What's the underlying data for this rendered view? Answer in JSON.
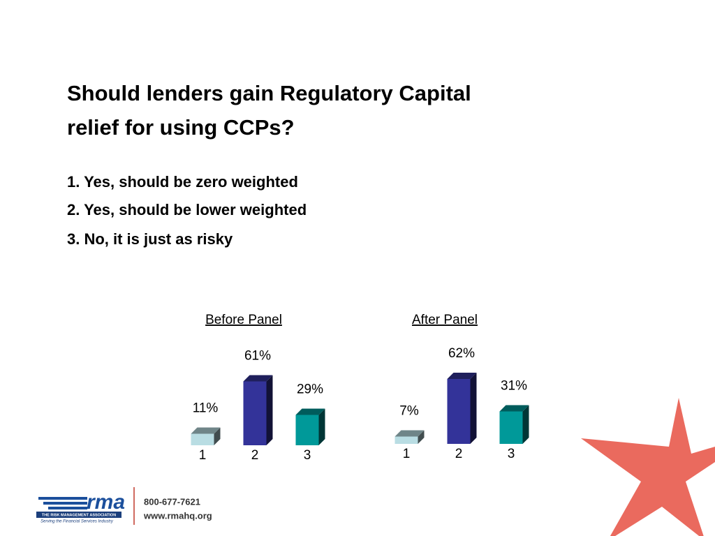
{
  "slide": {
    "title_lines": [
      "Should lenders gain Regulatory Capital",
      "relief for using CCPs?"
    ],
    "options": [
      "1. Yes, should be zero weighted",
      "2. Yes, should be lower weighted",
      "3. No, it is just as risky"
    ]
  },
  "footer": {
    "logo": "rma",
    "association": "THE RISK MANAGEMENT ASSOCIATION",
    "tagline": "Serving the Financial Services Industry",
    "phone": "800-677-7621",
    "website": "www.rmahq.org"
  },
  "chart_data": [
    {
      "type": "bar",
      "title": "Before Panel",
      "categories": [
        "1",
        "2",
        "3"
      ],
      "values": [
        11,
        61,
        29
      ],
      "value_labels": [
        "11%",
        "61%",
        "29%"
      ],
      "colors": [
        "#b9dde3",
        "#333399",
        "#009999"
      ]
    },
    {
      "type": "bar",
      "title": "After Panel",
      "categories": [
        "1",
        "2",
        "3"
      ],
      "values": [
        7,
        62,
        31
      ],
      "value_labels": [
        "7%",
        "62%",
        "31%"
      ],
      "colors": [
        "#b9dde3",
        "#333399",
        "#009999"
      ]
    }
  ]
}
